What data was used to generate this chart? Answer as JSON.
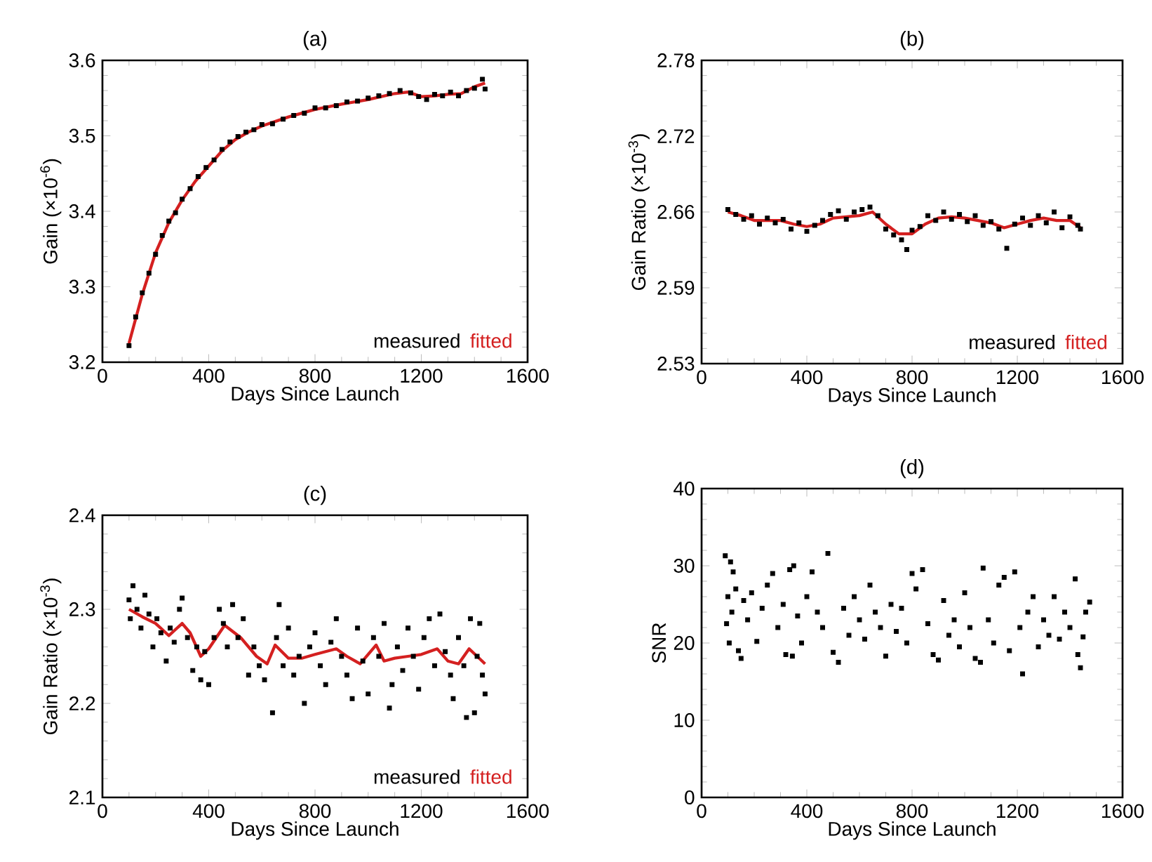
{
  "chart_data": [
    {
      "type": "scatter",
      "title": "(a)",
      "xlabel": "Days Since Launch",
      "ylabel": "Gain (×10$^{-6}$)",
      "xlim": [
        0,
        1600
      ],
      "xticks": [
        0,
        400,
        800,
        1200,
        1600
      ],
      "ylim": [
        3.2,
        3.6
      ],
      "yticks": [
        3.2,
        3.3,
        3.4,
        3.5,
        3.6
      ],
      "legend": "bottom right",
      "series": [
        {
          "name": "measured",
          "marker": "square",
          "color": "#000000",
          "x": [
            100,
            125,
            150,
            175,
            200,
            225,
            250,
            275,
            300,
            330,
            360,
            390,
            420,
            450,
            480,
            510,
            540,
            570,
            600,
            640,
            680,
            720,
            760,
            800,
            840,
            880,
            920,
            960,
            1000,
            1040,
            1080,
            1120,
            1160,
            1190,
            1220,
            1250,
            1280,
            1310,
            1340,
            1370,
            1400,
            1430,
            1440
          ],
          "values": [
            3.222,
            3.26,
            3.292,
            3.318,
            3.343,
            3.368,
            3.387,
            3.398,
            3.416,
            3.43,
            3.446,
            3.458,
            3.468,
            3.482,
            3.492,
            3.499,
            3.505,
            3.508,
            3.515,
            3.516,
            3.522,
            3.527,
            3.53,
            3.537,
            3.537,
            3.54,
            3.545,
            3.546,
            3.55,
            3.553,
            3.556,
            3.56,
            3.557,
            3.552,
            3.548,
            3.555,
            3.553,
            3.558,
            3.553,
            3.56,
            3.563,
            3.575,
            3.562
          ]
        },
        {
          "name": "fitted",
          "type": "line",
          "color": "#d42020",
          "x": [
            100,
            150,
            200,
            250,
            300,
            350,
            400,
            450,
            500,
            550,
            600,
            700,
            800,
            900,
            1000,
            1100,
            1150,
            1200,
            1250,
            1300,
            1350,
            1400,
            1440
          ],
          "values": [
            3.225,
            3.29,
            3.345,
            3.385,
            3.415,
            3.44,
            3.46,
            3.48,
            3.495,
            3.505,
            3.513,
            3.525,
            3.535,
            3.542,
            3.548,
            3.556,
            3.558,
            3.552,
            3.553,
            3.555,
            3.556,
            3.565,
            3.57
          ]
        }
      ]
    },
    {
      "type": "scatter",
      "title": "(b)",
      "xlabel": "Days Since Launch",
      "ylabel": "Gain Ratio (×10$^{-3}$)",
      "xlim": [
        0,
        1600
      ],
      "xticks": [
        0,
        400,
        800,
        1200,
        1600
      ],
      "ylim": [
        2.53,
        2.78
      ],
      "yticks": [
        {
          "value": 2.53,
          "label": "2.53"
        },
        {
          "value": 2.5925,
          "label": "2.59"
        },
        {
          "value": 2.655,
          "label": "2.66"
        },
        {
          "value": 2.7175,
          "label": "2.72"
        },
        {
          "value": 2.78,
          "label": "2.78"
        }
      ],
      "legend": "bottom right",
      "series": [
        {
          "name": "measured",
          "marker": "square",
          "color": "#000000",
          "x": [
            100,
            130,
            160,
            190,
            220,
            250,
            280,
            310,
            340,
            370,
            400,
            430,
            460,
            490,
            520,
            550,
            580,
            610,
            640,
            670,
            700,
            730,
            760,
            780,
            800,
            830,
            860,
            890,
            920,
            950,
            980,
            1010,
            1040,
            1070,
            1100,
            1130,
            1160,
            1190,
            1220,
            1250,
            1280,
            1310,
            1340,
            1370,
            1400,
            1430,
            1440
          ],
          "values": [
            2.657,
            2.653,
            2.649,
            2.652,
            2.645,
            2.65,
            2.646,
            2.649,
            2.641,
            2.646,
            2.639,
            2.644,
            2.648,
            2.653,
            2.656,
            2.649,
            2.655,
            2.657,
            2.659,
            2.652,
            2.641,
            2.636,
            2.632,
            2.624,
            2.64,
            2.643,
            2.652,
            2.648,
            2.655,
            2.649,
            2.653,
            2.647,
            2.652,
            2.644,
            2.647,
            2.641,
            2.625,
            2.645,
            2.65,
            2.644,
            2.652,
            2.646,
            2.655,
            2.642,
            2.651,
            2.644,
            2.641
          ]
        },
        {
          "name": "fitted",
          "type": "line",
          "color": "#d42020",
          "x": [
            100,
            150,
            200,
            300,
            350,
            400,
            450,
            500,
            550,
            600,
            650,
            700,
            750,
            800,
            850,
            900,
            950,
            1000,
            1050,
            1100,
            1150,
            1200,
            1250,
            1300,
            1350,
            1400,
            1440
          ],
          "values": [
            2.655,
            2.652,
            2.648,
            2.648,
            2.645,
            2.643,
            2.645,
            2.65,
            2.651,
            2.652,
            2.655,
            2.645,
            2.637,
            2.637,
            2.645,
            2.65,
            2.651,
            2.65,
            2.648,
            2.646,
            2.642,
            2.645,
            2.648,
            2.65,
            2.648,
            2.648,
            2.642
          ]
        }
      ]
    },
    {
      "type": "scatter",
      "title": "(c)",
      "xlabel": "Days Since Launch",
      "ylabel": "Gain Ratio (×10$^{-3}$)",
      "xlim": [
        0,
        1600
      ],
      "xticks": [
        0,
        400,
        800,
        1200,
        1600
      ],
      "ylim": [
        2.1,
        2.4
      ],
      "yticks": [
        2.1,
        2.2,
        2.3,
        2.4
      ],
      "legend": "bottom right",
      "series": [
        {
          "name": "measured",
          "marker": "square",
          "color": "#000000",
          "x": [
            100,
            105,
            115,
            130,
            145,
            160,
            175,
            190,
            205,
            220,
            240,
            255,
            270,
            290,
            300,
            320,
            340,
            355,
            370,
            385,
            400,
            420,
            440,
            455,
            470,
            490,
            510,
            530,
            550,
            570,
            590,
            610,
            640,
            655,
            665,
            680,
            700,
            720,
            740,
            760,
            780,
            800,
            820,
            840,
            860,
            880,
            900,
            920,
            940,
            960,
            980,
            1000,
            1020,
            1040,
            1060,
            1080,
            1090,
            1110,
            1130,
            1150,
            1170,
            1190,
            1210,
            1230,
            1250,
            1270,
            1290,
            1310,
            1320,
            1340,
            1360,
            1370,
            1385,
            1400,
            1410,
            1420,
            1430,
            1440
          ],
          "values": [
            2.31,
            2.29,
            2.325,
            2.3,
            2.28,
            2.315,
            2.295,
            2.26,
            2.29,
            2.275,
            2.245,
            2.28,
            2.265,
            2.3,
            2.312,
            2.27,
            2.235,
            2.26,
            2.225,
            2.255,
            2.22,
            2.27,
            2.3,
            2.285,
            2.26,
            2.305,
            2.27,
            2.29,
            2.23,
            2.26,
            2.24,
            2.225,
            2.19,
            2.27,
            2.305,
            2.24,
            2.28,
            2.23,
            2.25,
            2.2,
            2.26,
            2.275,
            2.24,
            2.22,
            2.265,
            2.29,
            2.25,
            2.23,
            2.205,
            2.28,
            2.245,
            2.21,
            2.27,
            2.25,
            2.285,
            2.195,
            2.22,
            2.26,
            2.235,
            2.28,
            2.25,
            2.215,
            2.27,
            2.29,
            2.24,
            2.295,
            2.255,
            2.23,
            2.205,
            2.27,
            2.24,
            2.185,
            2.29,
            2.19,
            2.25,
            2.285,
            2.23,
            2.21
          ]
        },
        {
          "name": "fitted",
          "type": "line",
          "color": "#d42020",
          "x": [
            100,
            150,
            200,
            250,
            300,
            330,
            370,
            400,
            460,
            520,
            580,
            620,
            650,
            700,
            750,
            800,
            880,
            920,
            970,
            1030,
            1060,
            1100,
            1150,
            1200,
            1260,
            1300,
            1340,
            1380,
            1440
          ],
          "values": [
            2.3,
            2.292,
            2.285,
            2.272,
            2.285,
            2.275,
            2.25,
            2.258,
            2.283,
            2.27,
            2.25,
            2.242,
            2.262,
            2.248,
            2.248,
            2.252,
            2.258,
            2.25,
            2.242,
            2.262,
            2.245,
            2.248,
            2.25,
            2.252,
            2.258,
            2.245,
            2.242,
            2.258,
            2.242
          ]
        }
      ]
    },
    {
      "type": "scatter",
      "title": "(d)",
      "xlabel": "Days Since Launch",
      "ylabel": "SNR",
      "xlim": [
        0,
        1600
      ],
      "xticks": [
        0,
        400,
        800,
        1200,
        1600
      ],
      "ylim": [
        0,
        40
      ],
      "yticks": [
        0,
        10,
        20,
        30,
        40
      ],
      "series": [
        {
          "color": "#000000",
          "marker": "square",
          "x": [
            90,
            95,
            100,
            105,
            110,
            115,
            120,
            130,
            140,
            150,
            160,
            175,
            190,
            210,
            230,
            250,
            270,
            290,
            310,
            320,
            335,
            345,
            350,
            365,
            380,
            400,
            420,
            440,
            460,
            480,
            500,
            520,
            540,
            560,
            580,
            600,
            620,
            640,
            660,
            680,
            700,
            720,
            740,
            760,
            780,
            800,
            815,
            840,
            860,
            880,
            900,
            920,
            940,
            960,
            980,
            1000,
            1020,
            1040,
            1060,
            1070,
            1090,
            1110,
            1130,
            1150,
            1170,
            1190,
            1210,
            1220,
            1240,
            1260,
            1280,
            1300,
            1320,
            1340,
            1360,
            1380,
            1400,
            1420,
            1430,
            1440,
            1450,
            1460,
            1475
          ],
          "values": [
            31.3,
            22.5,
            26,
            20,
            30.5,
            24,
            29.2,
            27,
            19,
            18,
            25.5,
            23,
            26.5,
            20.2,
            24.5,
            27.5,
            29,
            22,
            25,
            18.5,
            29.5,
            18.3,
            30,
            23.5,
            20,
            26,
            29.2,
            24,
            22,
            31.6,
            18.8,
            17.5,
            24.5,
            21,
            26,
            23,
            20.5,
            27.5,
            24,
            22,
            18.3,
            25,
            21.5,
            24.5,
            20,
            29,
            27,
            29.5,
            22.5,
            18.5,
            17.8,
            25.5,
            21,
            23,
            19.5,
            26.5,
            22,
            18,
            17.5,
            29.7,
            23,
            20,
            27.5,
            28.5,
            19,
            29.2,
            22,
            16,
            24,
            26,
            19.5,
            23,
            21,
            26,
            20.5,
            24,
            22,
            28.3,
            18.5,
            16.8,
            20.8,
            24,
            25.3
          ]
        }
      ]
    }
  ]
}
